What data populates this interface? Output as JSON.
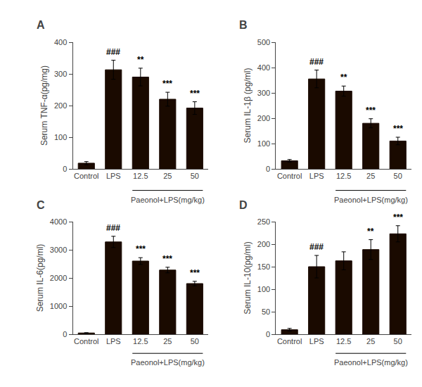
{
  "chart_data": [
    {
      "type": "bar",
      "title": "A",
      "ylabel": "Serum TNF-α(pg/mg)",
      "categories": [
        "Control",
        "LPS",
        "12.5",
        "25",
        "50"
      ],
      "values": [
        18,
        313,
        290,
        220,
        192
      ],
      "errors": [
        5,
        30,
        28,
        22,
        20
      ],
      "color": "#1a0a00",
      "ylim": [
        0,
        400
      ],
      "yticks": [
        0,
        100,
        200,
        300,
        400
      ],
      "grid": false,
      "annotations": [
        {
          "text": "###",
          "category": "LPS"
        },
        {
          "text": "**",
          "category": "12.5"
        },
        {
          "text": "***",
          "category": "25"
        },
        {
          "text": "***",
          "category": "50"
        },
        {
          "text": "Paeonol+LPS(mg/kg)",
          "categories": [
            "12.5",
            "25",
            "50"
          ]
        }
      ]
    },
    {
      "type": "bar",
      "title": "B",
      "ylabel": "Serum IL-1β (pg/ml)",
      "categories": [
        "Control",
        "LPS",
        "12.5",
        "25",
        "50"
      ],
      "values": [
        32,
        355,
        307,
        180,
        110
      ],
      "errors": [
        5,
        35,
        20,
        18,
        15
      ],
      "color": "#1a0a00",
      "ylim": [
        0,
        500
      ],
      "yticks": [
        0,
        100,
        200,
        300,
        400,
        500
      ],
      "grid": false,
      "annotations": [
        {
          "text": "###",
          "category": "LPS"
        },
        {
          "text": "**",
          "category": "12.5"
        },
        {
          "text": "***",
          "category": "25"
        },
        {
          "text": "***",
          "category": "50"
        },
        {
          "text": "Paeonol+LPS(mg/kg)",
          "categories": [
            "12.5",
            "25",
            "50"
          ]
        }
      ]
    },
    {
      "type": "bar",
      "title": "C",
      "ylabel": "Serum IL-6(pg/ml)",
      "categories": [
        "Control",
        "LPS",
        "12.5",
        "25",
        "50"
      ],
      "values": [
        45,
        3280,
        2600,
        2280,
        1800
      ],
      "errors": [
        10,
        200,
        120,
        100,
        80
      ],
      "color": "#1a0a00",
      "ylim": [
        0,
        4000
      ],
      "yticks": [
        0,
        1000,
        2000,
        3000,
        4000
      ],
      "grid": false,
      "annotations": [
        {
          "text": "###",
          "category": "LPS"
        },
        {
          "text": "***",
          "category": "12.5"
        },
        {
          "text": "***",
          "category": "25"
        },
        {
          "text": "***",
          "category": "50"
        },
        {
          "text": "Paeonol+LPS(mg/kg)",
          "categories": [
            "12.5",
            "25",
            "50"
          ]
        }
      ]
    },
    {
      "type": "bar",
      "title": "D",
      "ylabel": "Serum IL-10(pg/ml)",
      "categories": [
        "Control",
        "LPS",
        "12.5",
        "25",
        "50"
      ],
      "values": [
        10,
        150,
        163,
        188,
        223
      ],
      "errors": [
        3,
        25,
        20,
        22,
        18
      ],
      "color": "#1a0a00",
      "ylim": [
        0,
        250
      ],
      "yticks": [
        0,
        50,
        100,
        150,
        200,
        250
      ],
      "grid": false,
      "annotations": [
        {
          "text": "###",
          "category": "LPS"
        },
        {
          "text": "**",
          "category": "25"
        },
        {
          "text": "***",
          "category": "50"
        },
        {
          "text": "Paeonol+LPS(mg/kg)",
          "categories": [
            "12.5",
            "25",
            "50"
          ]
        }
      ]
    }
  ]
}
